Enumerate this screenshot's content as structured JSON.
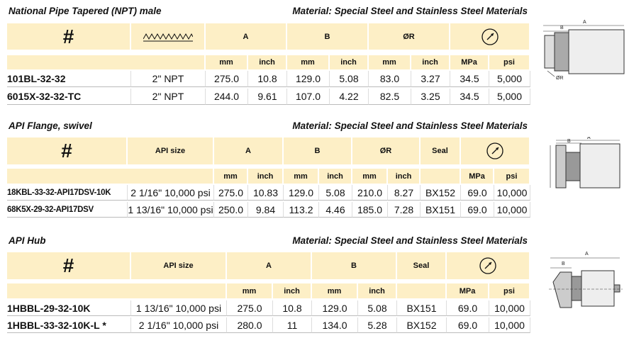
{
  "sections": [
    {
      "title": "National Pipe Tapered (NPT) male",
      "material": "Material: Special Steel and Stainless Steel Materials",
      "header": [
        "#",
        "A",
        "B",
        "ØR"
      ],
      "units": [
        "mm",
        "inch",
        "mm",
        "inch",
        "mm",
        "inch",
        "MPa",
        "psi"
      ],
      "rows": [
        [
          "101BL-32-32",
          "2\" NPT",
          "275.0",
          "10.8",
          "129.0",
          "5.08",
          "83.0",
          "3.27",
          "34.5",
          "5,000"
        ],
        [
          "6015X-32-32-TC",
          "2\" NPT",
          "244.0",
          "9.61",
          "107.0",
          "4.22",
          "82.5",
          "3.25",
          "34.5",
          "5,000"
        ]
      ],
      "drawing_labels": [
        "A",
        "B",
        "ØR"
      ]
    },
    {
      "title": "API Flange, swivel",
      "material": "Material: Special Steel and Stainless Steel Materials",
      "header": [
        "#",
        "API size",
        "A",
        "B",
        "ØR",
        "Seal"
      ],
      "units": [
        "mm",
        "inch",
        "mm",
        "inch",
        "mm",
        "inch",
        "MPa",
        "psi"
      ],
      "rows": [
        [
          "18KBL-33-32-API17DSV-10K",
          "2 1/16\" 10,000 psi",
          "275.0",
          "10.83",
          "129.0",
          "5.08",
          "210.0",
          "8.27",
          "BX152",
          "69.0",
          "10,000"
        ],
        [
          "68K5X-29-32-API17DSV",
          "1 13/16\" 10,000 psi",
          "250.0",
          "9.84",
          "113.2",
          "4.46",
          "185.0",
          "7.28",
          "BX151",
          "69.0",
          "10,000"
        ]
      ],
      "drawing_labels": [
        "A",
        "B"
      ]
    },
    {
      "title": "API Hub",
      "material": "Material: Special Steel and Stainless Steel Materials",
      "header": [
        "#",
        "API size",
        "A",
        "B",
        "Seal"
      ],
      "units": [
        "mm",
        "inch",
        "mm",
        "inch",
        "MPa",
        "psi"
      ],
      "rows": [
        [
          "1HBBL-29-32-10K",
          "1 13/16\" 10,000 psi",
          "275.0",
          "10.8",
          "129.0",
          "5.08",
          "BX151",
          "69.0",
          "10,000"
        ],
        [
          "1HBBL-33-32-10K-L *",
          "2 1/16\" 10,000 psi",
          "280.0",
          "11",
          "134.0",
          "5.28",
          "BX152",
          "69.0",
          "10,000"
        ]
      ],
      "drawing_labels": [
        "A",
        "B"
      ]
    }
  ]
}
